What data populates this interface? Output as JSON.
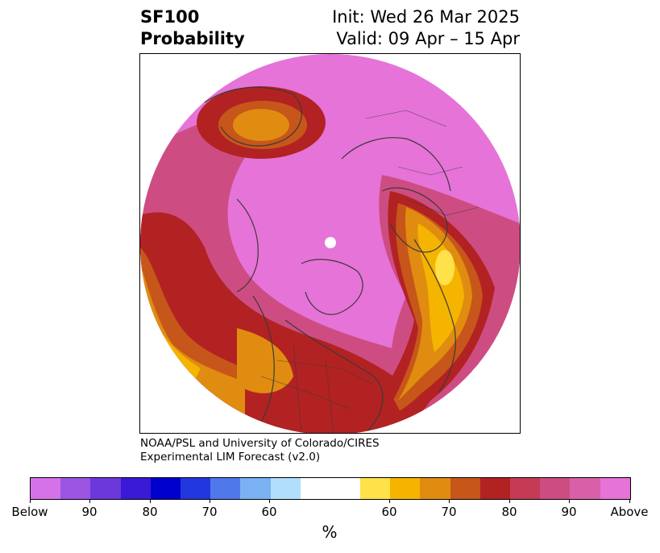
{
  "header": {
    "title_line1": "SF100",
    "title_line2": "Probability",
    "init_text": "Init: Wed 26 Mar 2025",
    "valid_text": "Valid: 09 Apr – 15 Apr"
  },
  "credit": {
    "line1": "NOAA/PSL and University of Colorado/CIRES",
    "line2": "Experimental LIM Forecast (v2.0)"
  },
  "colorbar": {
    "unit_label": "%",
    "colors": [
      "#d672e8",
      "#9b55e2",
      "#6c38dc",
      "#3a1ad6",
      "#0000cc",
      "#2237dd",
      "#4f78ea",
      "#79b1f3",
      "#b1defb",
      "#ffffff",
      "#ffffff",
      "#ffe14a",
      "#f4b400",
      "#e08c10",
      "#c7561a",
      "#b22222",
      "#c53b55",
      "#cd4d82",
      "#d960a8",
      "#e673d8"
    ],
    "ticks": [
      "Below",
      "90",
      "80",
      "70",
      "60",
      "60",
      "70",
      "80",
      "90",
      "Above"
    ]
  },
  "map": {
    "projection": "north-polar stereographic",
    "field": "SF100 probability",
    "colors": {
      "above_90": "#e673d8",
      "above_80": "#cd4d82",
      "above_70": "#b22222",
      "above_60": "#c7561a",
      "above_50": "#e08c10",
      "above_40": "#f4b400",
      "above_30": "#ffe14a",
      "coast": "#3a3a3a"
    }
  }
}
